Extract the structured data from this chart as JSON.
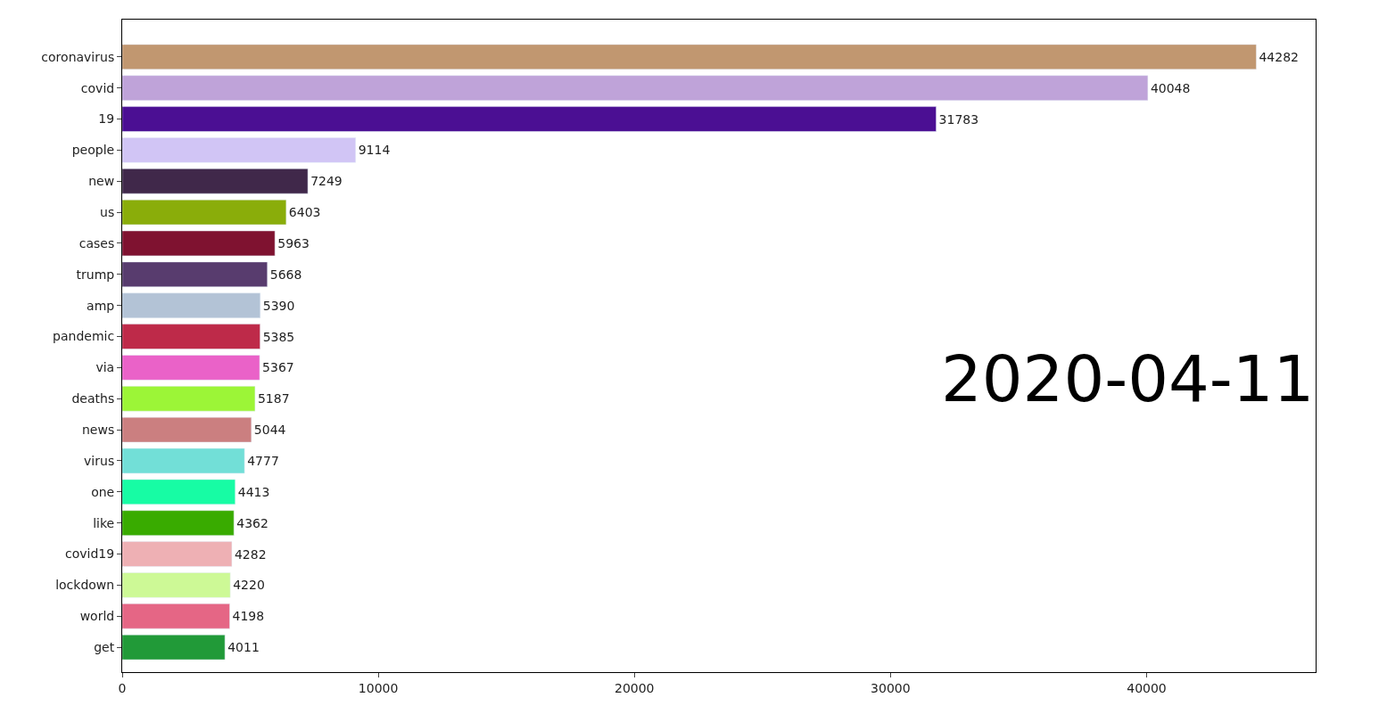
{
  "chart_data": {
    "type": "bar",
    "orientation": "horizontal",
    "categories": [
      "coronavirus",
      "covid",
      "19",
      "people",
      "new",
      "us",
      "cases",
      "trump",
      "amp",
      "pandemic",
      "via",
      "deaths",
      "news",
      "virus",
      "one",
      "like",
      "covid19",
      "lockdown",
      "world",
      "get"
    ],
    "values": [
      44282,
      40048,
      31783,
      9114,
      7249,
      6403,
      5963,
      5668,
      5390,
      5385,
      5367,
      5187,
      5044,
      4777,
      4413,
      4362,
      4282,
      4220,
      4198,
      4011
    ],
    "colors": [
      "#c19770",
      "#bfa3d9",
      "#4b0f93",
      "#d1c5f5",
      "#40284a",
      "#8aad0a",
      "#7f1230",
      "#583c6e",
      "#b3c3d6",
      "#be2a49",
      "#ea62c8",
      "#9cf537",
      "#cb7f80",
      "#72dfd7",
      "#17fca4",
      "#39ab00",
      "#eeb0b4",
      "#cdf996",
      "#e56685",
      "#219a38"
    ],
    "xlim": [
      0,
      46600
    ],
    "xticks": [
      0,
      10000,
      20000,
      30000,
      40000
    ],
    "data_labels": true,
    "annotations": [
      "2020-04-11"
    ]
  }
}
